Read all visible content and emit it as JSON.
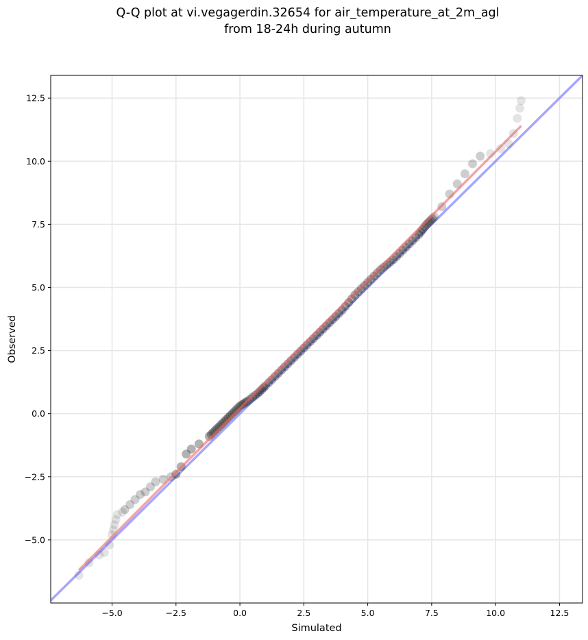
{
  "chart_data": {
    "type": "scatter",
    "title_line1": "Q-Q plot at vi.vegagerdin.32654 for air_temperature_at_2m_agl",
    "title_line2": "from 18-24h during autumn",
    "xlabel": "Simulated",
    "ylabel": "Observed",
    "xlim": [
      -7.4,
      13.4
    ],
    "ylim": [
      -7.5,
      13.4
    ],
    "xticks": [
      -5.0,
      -2.5,
      0.0,
      2.5,
      5.0,
      7.5,
      10.0,
      12.5
    ],
    "yticks": [
      -5.0,
      -2.5,
      0.0,
      2.5,
      5.0,
      7.5,
      10.0,
      12.5
    ],
    "xtick_labels": [
      "−5.0",
      "−2.5",
      "0.0",
      "2.5",
      "5.0",
      "7.5",
      "10.0",
      "12.5"
    ],
    "ytick_labels": [
      "−5.0",
      "−2.5",
      "0.0",
      "2.5",
      "5.0",
      "7.5",
      "10.0",
      "12.5"
    ],
    "grid": true,
    "point_color": "#222222",
    "identity_line_color": "#7777ff",
    "fit_line_color": "#ee6666",
    "identity_line": {
      "x": [
        -7.4,
        13.4
      ],
      "y": [
        -7.4,
        13.4
      ]
    },
    "fit_line": {
      "x": [
        -6.3,
        11.0
      ],
      "y": [
        -6.2,
        11.4
      ]
    },
    "points": {
      "x": [
        -6.3,
        -5.9,
        -5.5,
        -5.3,
        -5.1,
        -5.0,
        -4.95,
        -4.9,
        -4.85,
        -4.8,
        -4.6,
        -4.5,
        -4.3,
        -4.1,
        -3.9,
        -3.7,
        -3.5,
        -3.3,
        -3.0,
        -2.7,
        -2.5,
        -2.3,
        -2.1,
        -1.9,
        -1.6,
        -1.2,
        -0.9,
        -0.6,
        -0.3,
        0.0,
        0.3,
        0.7,
        1.0,
        1.5,
        2.0,
        2.5,
        3.0,
        3.5,
        4.0,
        4.5,
        5.0,
        5.5,
        6.0,
        6.5,
        7.0,
        7.3,
        7.6,
        7.9,
        8.2,
        8.5,
        8.8,
        9.1,
        9.4,
        9.8,
        10.2,
        10.5,
        10.7,
        10.85,
        10.95,
        11.0
      ],
      "y": [
        -6.4,
        -5.9,
        -5.6,
        -5.5,
        -5.2,
        -4.8,
        -4.6,
        -4.4,
        -4.2,
        -4.0,
        -3.9,
        -3.8,
        -3.6,
        -3.4,
        -3.2,
        -3.1,
        -2.9,
        -2.7,
        -2.6,
        -2.5,
        -2.4,
        -2.1,
        -1.6,
        -1.4,
        -1.2,
        -0.9,
        -0.6,
        -0.3,
        0.0,
        0.3,
        0.5,
        0.8,
        1.1,
        1.6,
        2.1,
        2.6,
        3.1,
        3.6,
        4.1,
        4.7,
        5.2,
        5.7,
        6.1,
        6.6,
        7.1,
        7.5,
        7.8,
        8.2,
        8.7,
        9.1,
        9.5,
        9.9,
        10.2,
        10.3,
        10.5,
        10.7,
        11.1,
        11.7,
        12.1,
        12.4
      ]
    }
  }
}
